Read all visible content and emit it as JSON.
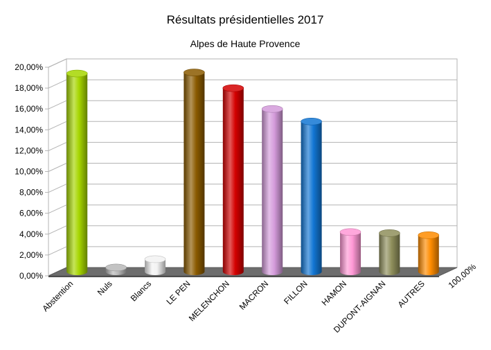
{
  "chart_data": {
    "type": "bar",
    "title": "Résultats présidentielles 2017",
    "subtitle": "Alpes de Haute Provence",
    "xlabel": "",
    "ylabel": "",
    "ylim": [
      0,
      20
    ],
    "ytick_step": 2,
    "ytick_labels": [
      "0,00%",
      "2,00%",
      "4,00%",
      "6,00%",
      "8,00%",
      "10,00%",
      "12,00%",
      "14,00%",
      "16,00%",
      "18,00%",
      "20,00%"
    ],
    "corner_label": "100,00%",
    "grid": true,
    "legend": "none",
    "categories": [
      "Abstention",
      "Nuls",
      "Blancs",
      "LE PEN",
      "MELENCHON",
      "MACRON",
      "FILLON",
      "HAMON",
      "DUPONT-AIGNAN",
      "AUTRES"
    ],
    "values": [
      19.0,
      0.4,
      1.2,
      19.1,
      17.6,
      15.6,
      14.4,
      3.8,
      3.7,
      3.5
    ],
    "colors": [
      "#a6d600",
      "#b8b8b8",
      "#f2f2f2",
      "#8a5a00",
      "#d40000",
      "#d49bdb",
      "#1276d4",
      "#ff99d6",
      "#8f8f5c",
      "#ff8c00"
    ]
  }
}
